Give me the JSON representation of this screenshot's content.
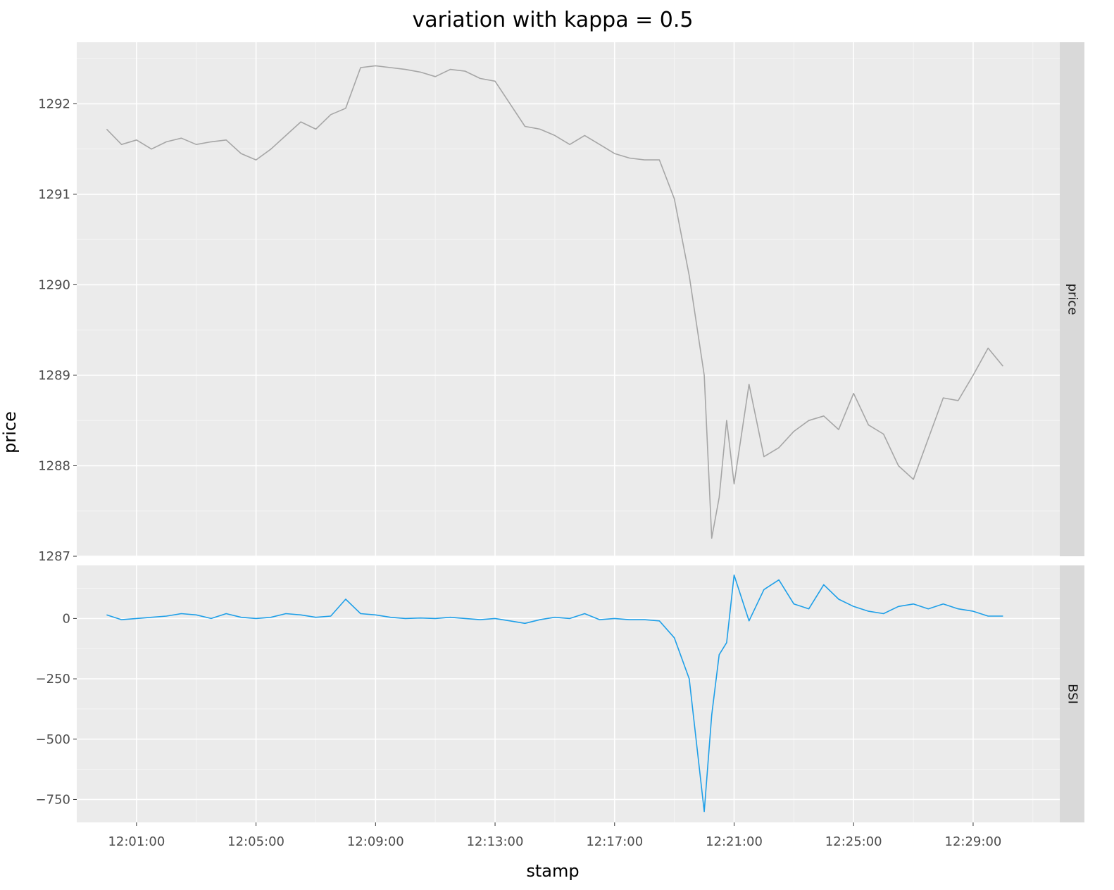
{
  "chart_data": {
    "type": "line",
    "title": "variation with kappa = 0.5",
    "xlabel": "stamp",
    "ylabel": "price",
    "x_tick_labels": [
      "12:01:00",
      "12:05:00",
      "12:09:00",
      "12:13:00",
      "12:17:00",
      "12:21:00",
      "12:25:00",
      "12:29:00"
    ],
    "x_tick_minutes": [
      1,
      5,
      9,
      13,
      17,
      21,
      25,
      29
    ],
    "x_start_label": "12:00:00",
    "x_range_minutes": [
      -1.0,
      31.9
    ],
    "grid": true,
    "x_minutes": [
      0,
      0.5,
      1,
      1.5,
      2,
      2.5,
      3,
      3.5,
      4,
      4.5,
      5,
      5.5,
      6,
      6.5,
      7,
      7.5,
      8,
      8.5,
      9,
      9.5,
      10,
      10.5,
      11,
      11.5,
      12,
      12.5,
      13,
      13.5,
      14,
      14.5,
      15,
      15.5,
      16,
      16.5,
      17,
      17.5,
      18,
      18.5,
      19,
      19.5,
      20,
      20.25,
      20.5,
      20.75,
      21,
      21.5,
      22,
      22.5,
      23,
      23.5,
      24,
      24.5,
      25,
      25.5,
      26,
      26.5,
      27,
      27.5,
      28,
      28.5,
      29,
      29.5,
      30
    ],
    "facets": [
      {
        "strip": "price",
        "color": "#a6a6a6",
        "y_ticks": [
          1287,
          1288,
          1289,
          1290,
          1291,
          1292
        ],
        "y_tick_labels": [
          "1287",
          "1288",
          "1289",
          "1290",
          "1291",
          "1292"
        ],
        "ylim": [
          1287.0,
          1292.68
        ],
        "values": [
          1291.72,
          1291.55,
          1291.6,
          1291.5,
          1291.58,
          1291.62,
          1291.55,
          1291.58,
          1291.6,
          1291.45,
          1291.38,
          1291.5,
          1291.65,
          1291.8,
          1291.72,
          1291.88,
          1291.95,
          1292.4,
          1292.42,
          1292.4,
          1292.38,
          1292.35,
          1292.3,
          1292.38,
          1292.36,
          1292.28,
          1292.25,
          1292.0,
          1291.75,
          1291.72,
          1291.65,
          1291.55,
          1291.65,
          1291.55,
          1291.45,
          1291.4,
          1291.38,
          1291.38,
          1290.95,
          1290.1,
          1289.0,
          1287.2,
          1287.65,
          1288.5,
          1287.8,
          1288.9,
          1288.1,
          1288.2,
          1288.38,
          1288.5,
          1288.55,
          1288.4,
          1288.8,
          1288.45,
          1288.35,
          1288.0,
          1287.85,
          1288.3,
          1288.75,
          1288.72,
          1289.0,
          1289.3,
          1289.1
        ]
      },
      {
        "strip": "BSI",
        "color": "#1e9fe8",
        "y_ticks": [
          -750,
          -500,
          -250,
          0
        ],
        "y_tick_labels": [
          "−750",
          "−500",
          "−250",
          "0"
        ],
        "ylim": [
          -845,
          220
        ],
        "values": [
          15,
          -5,
          0,
          5,
          10,
          20,
          15,
          0,
          20,
          5,
          0,
          5,
          20,
          15,
          5,
          10,
          80,
          20,
          15,
          5,
          0,
          2,
          0,
          5,
          0,
          -5,
          0,
          -10,
          -20,
          -5,
          5,
          0,
          20,
          -5,
          0,
          -5,
          -5,
          -10,
          -80,
          -250,
          -800,
          -400,
          -150,
          -100,
          180,
          -10,
          120,
          160,
          60,
          40,
          140,
          80,
          50,
          30,
          20,
          50,
          60,
          40,
          60,
          40,
          30,
          10,
          10
        ]
      }
    ]
  }
}
